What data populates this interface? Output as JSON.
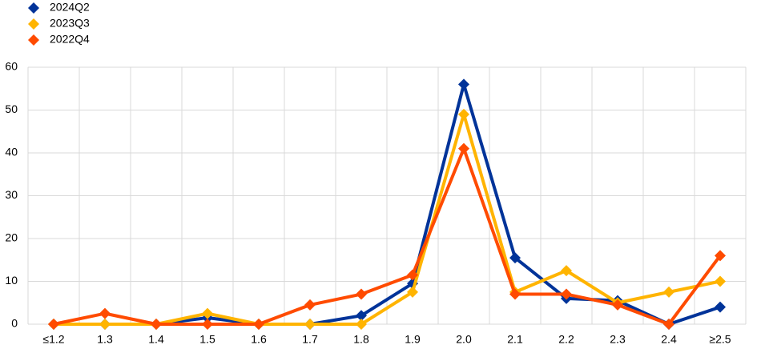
{
  "chart_data": {
    "type": "line",
    "categories": [
      "≤1.2",
      "1.3",
      "1.4",
      "1.5",
      "1.6",
      "1.7",
      "1.8",
      "1.9",
      "2.0",
      "2.1",
      "2.2",
      "2.3",
      "2.4",
      "≥2.5"
    ],
    "series": [
      {
        "name": "2024Q2",
        "color": "#003399",
        "values": [
          0,
          0,
          0,
          1.5,
          0,
          0,
          2,
          9.5,
          56,
          15.5,
          6,
          5.5,
          0,
          4
        ]
      },
      {
        "name": "2023Q3",
        "color": "#ffb400",
        "values": [
          0,
          0,
          0,
          2.5,
          0,
          0,
          0,
          7.5,
          49,
          7.5,
          12.5,
          5,
          7.5,
          10
        ]
      },
      {
        "name": "2022Q4",
        "color": "#ff4b00",
        "values": [
          0,
          2.5,
          0,
          0,
          0,
          4.5,
          7,
          11.5,
          41,
          7,
          7,
          4.5,
          0,
          16
        ]
      }
    ],
    "ylim": [
      0,
      60
    ],
    "yticks": [
      0,
      10,
      20,
      30,
      40,
      50,
      60
    ],
    "grid": true,
    "legend": "top-left"
  }
}
